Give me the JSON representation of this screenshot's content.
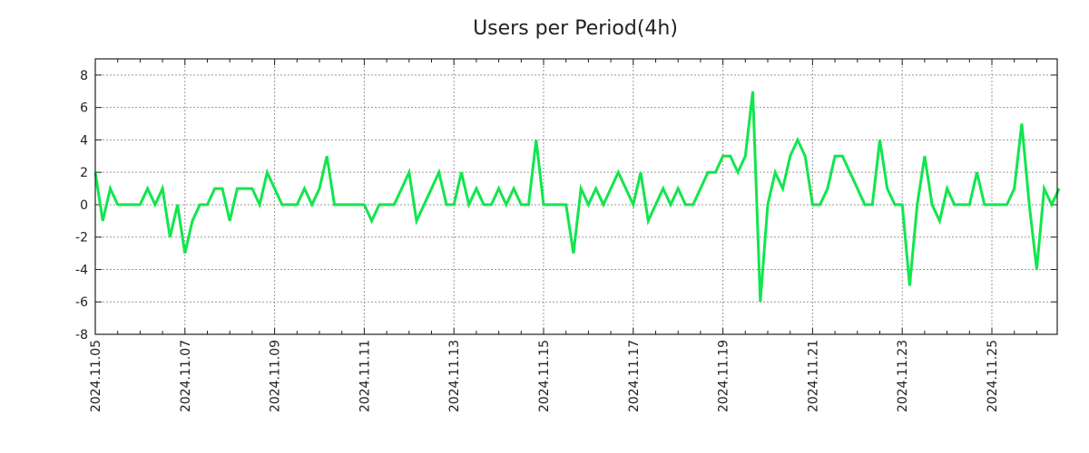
{
  "chart_data": {
    "type": "line",
    "title": "Users per Period(4h)",
    "xlabel": "",
    "ylabel": "",
    "ylim": [
      -8,
      9
    ],
    "yticks": [
      "-8",
      "-6",
      "-4",
      "-2",
      "0",
      "2",
      "4",
      "6",
      "8"
    ],
    "xticks": [
      "2024.11.05",
      "2024.11.07",
      "2024.11.09",
      "2024.11.11",
      "2024.11.13",
      "2024.11.15",
      "2024.11.17",
      "2024.11.19",
      "2024.11.21",
      "2024.11.23",
      "2024.11.25"
    ],
    "x_start": "2024.11.05 00:00",
    "x_step_hours": 4,
    "grid": true,
    "line_color": "#11e64d",
    "series": [
      {
        "name": "Users",
        "values": [
          2,
          -1,
          1,
          0,
          0,
          0,
          0,
          1,
          0,
          1,
          -2,
          0,
          -3,
          -1,
          0,
          0,
          1,
          1,
          -1,
          1,
          1,
          1,
          0,
          2,
          1,
          0,
          0,
          0,
          1,
          0,
          1,
          3,
          0,
          0,
          0,
          0,
          0,
          -1,
          0,
          0,
          0,
          1,
          2,
          -1,
          0,
          1,
          2,
          0,
          0,
          2,
          0,
          1,
          0,
          0,
          1,
          0,
          1,
          0,
          0,
          4,
          0,
          0,
          0,
          0,
          -3,
          1,
          0,
          1,
          0,
          1,
          2,
          1,
          0,
          2,
          -1,
          0,
          1,
          0,
          1,
          0,
          0,
          1,
          2,
          2,
          3,
          3,
          2,
          3,
          7,
          -6,
          0,
          2,
          1,
          3,
          4,
          3,
          0,
          0,
          1,
          3,
          3,
          2,
          1,
          0,
          0,
          4,
          1,
          0,
          0,
          -5,
          0,
          3,
          0,
          -1,
          1,
          0,
          0,
          0,
          2,
          0,
          0,
          0,
          0,
          1,
          5,
          0,
          -4,
          1,
          0,
          1
        ]
      }
    ]
  }
}
